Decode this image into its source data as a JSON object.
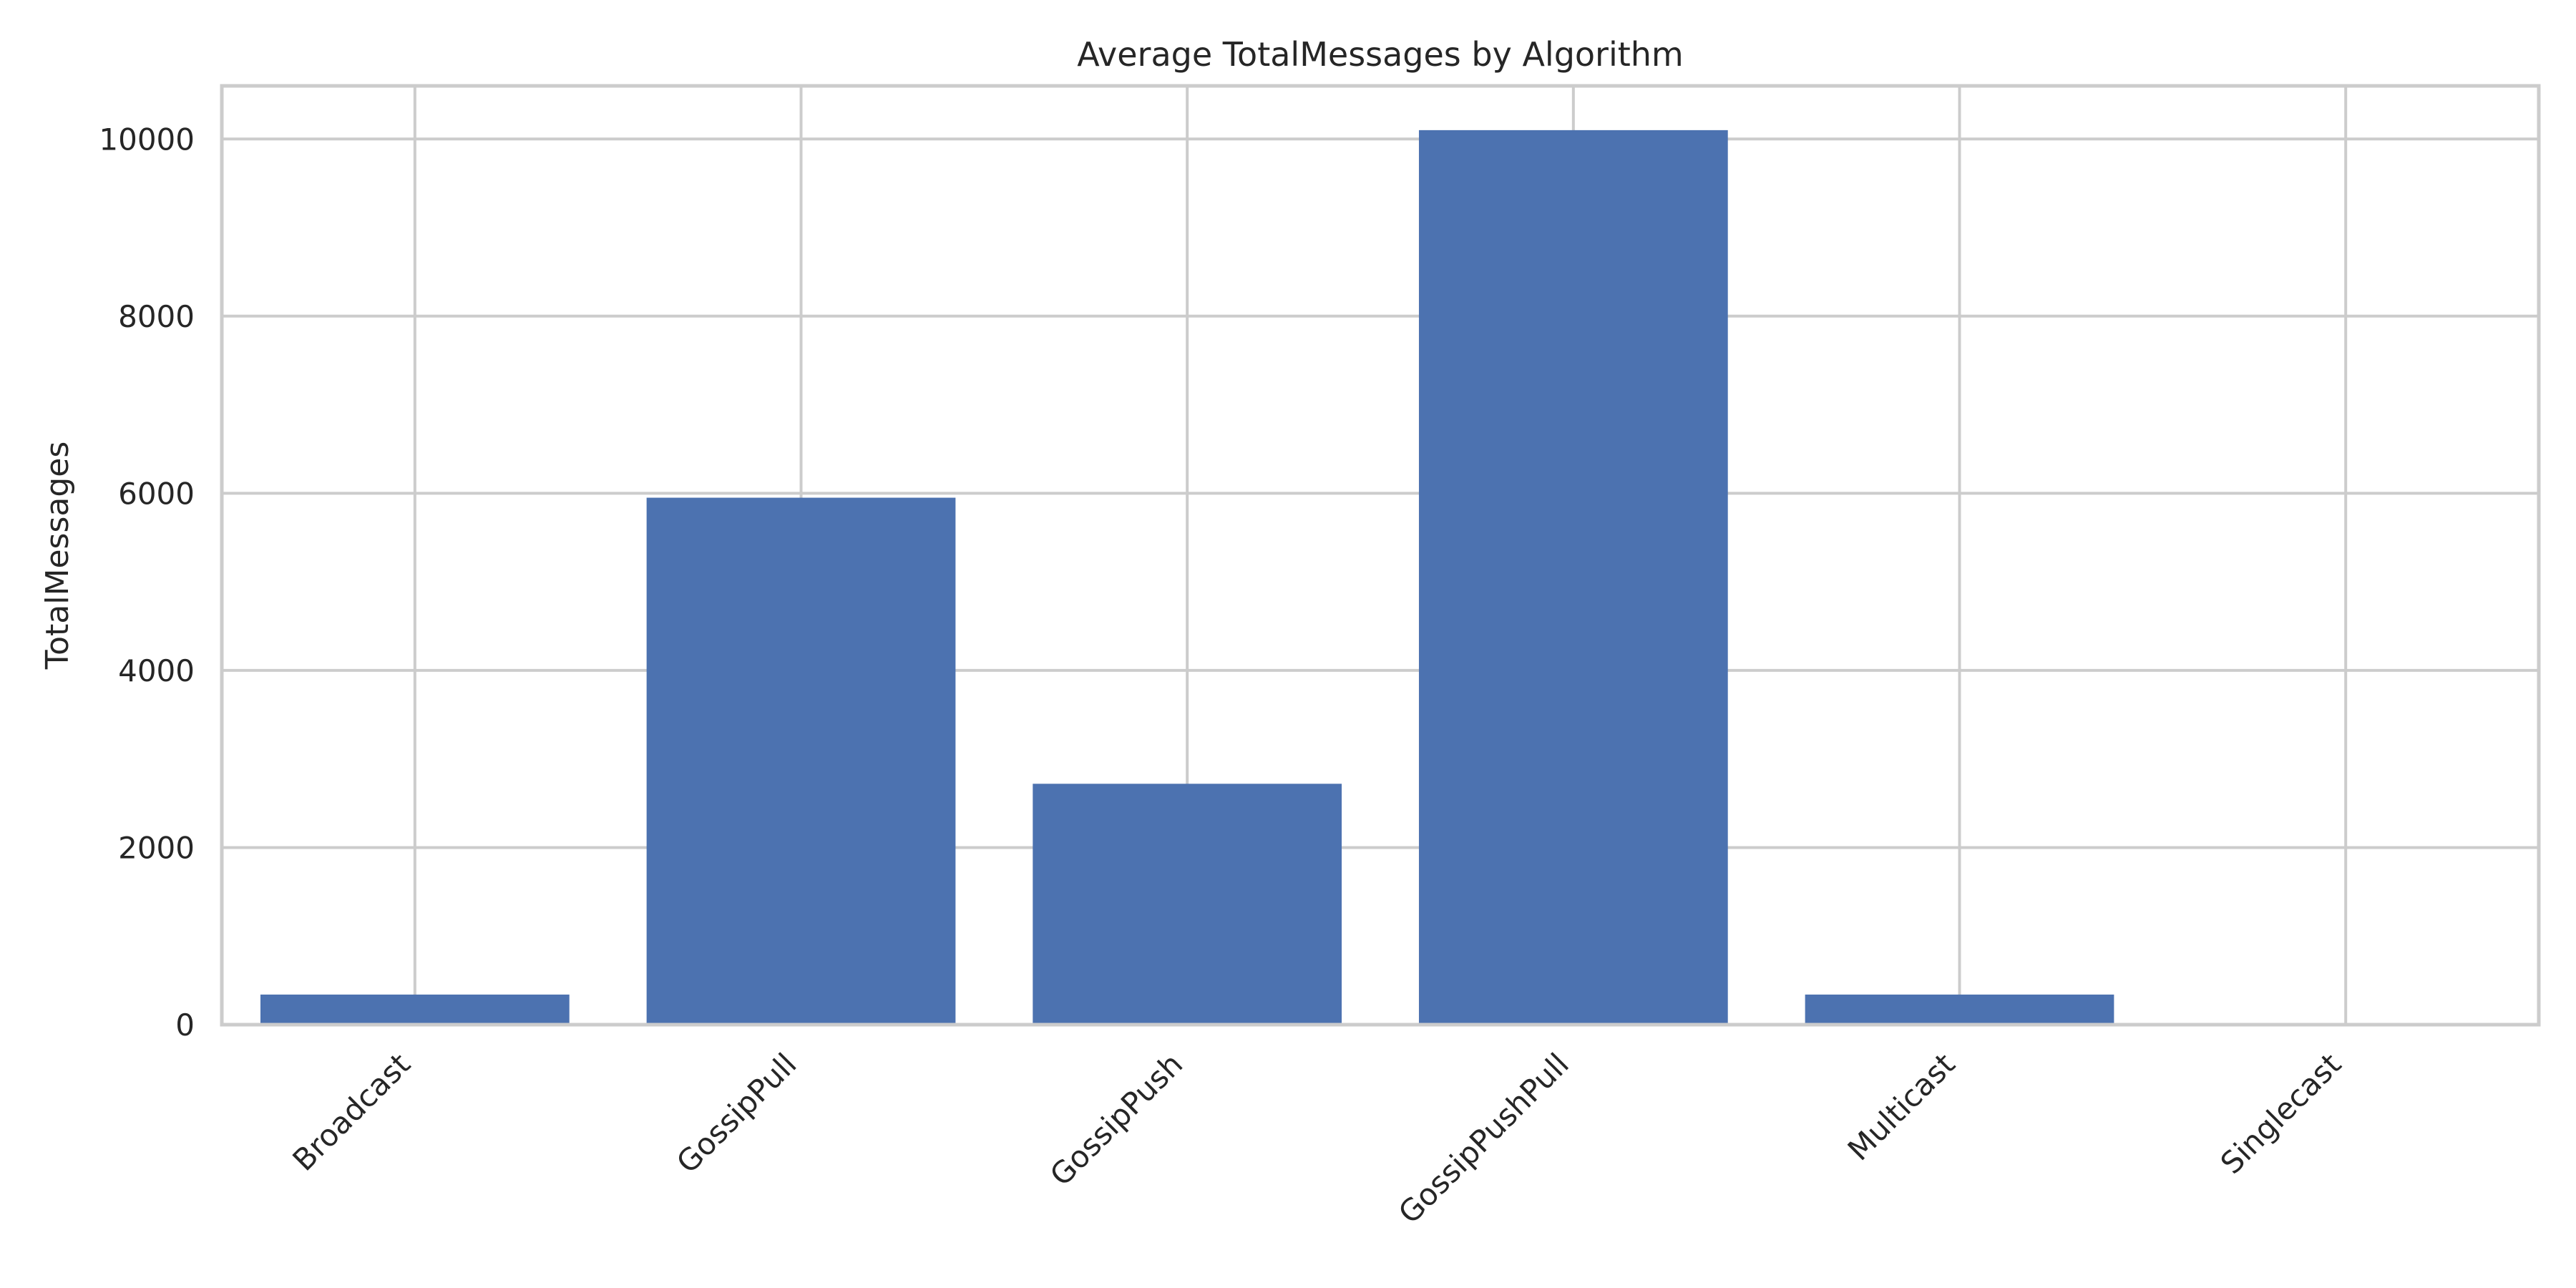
{
  "chart_data": {
    "type": "bar",
    "title": "Average TotalMessages by Algorithm",
    "xlabel": "",
    "ylabel": "TotalMessages",
    "categories": [
      "Broadcast",
      "GossipPull",
      "GossipPush",
      "GossipPushPull",
      "Multicast",
      "Singlecast"
    ],
    "values": [
      340,
      5950,
      2720,
      10100,
      340,
      0
    ],
    "ylim": [
      0,
      10600
    ],
    "yticks": [
      0,
      2000,
      4000,
      6000,
      8000,
      10000
    ],
    "grid": true,
    "bar_color": "#4c72b0",
    "grid_color": "#cccccc",
    "frame_color": "#cccccc"
  }
}
